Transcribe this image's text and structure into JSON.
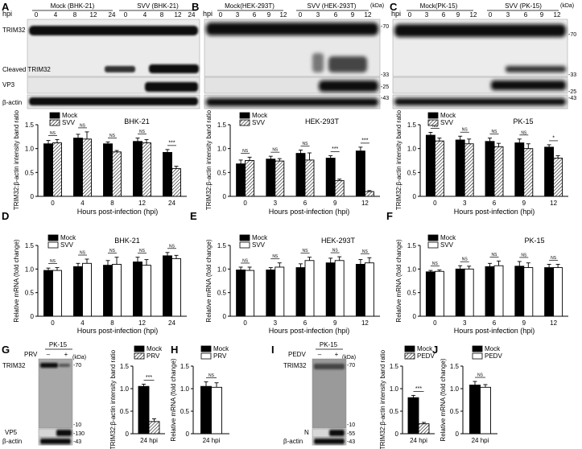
{
  "panels": {
    "A": {
      "label": "A",
      "blot": {
        "hpi_label": "hpi",
        "hpi": [
          "0",
          "4",
          "8",
          "12",
          "24",
          "0",
          "4",
          "8",
          "12",
          "24"
        ],
        "mock_label": "Mock (BHK-21)",
        "svv_label": "SVV (BHK-21)",
        "rows": [
          "TRIM32",
          "Cleaved TRIM32",
          "VP3",
          "β-actin"
        ]
      }
    },
    "B": {
      "label": "B",
      "blot": {
        "hpi_label": "hpi",
        "hpi": [
          "0",
          "3",
          "6",
          "9",
          "12",
          "0",
          "3",
          "6",
          "9",
          "12"
        ],
        "mock_label": "Mock(HEK-293T)",
        "svv_label": "SVV (HEK-293T)",
        "kda": "(kDa)",
        "markers": [
          "-70",
          "-33",
          "-25",
          "-43"
        ]
      }
    },
    "C": {
      "label": "C",
      "blot": {
        "hpi_label": "hpi",
        "hpi": [
          "0",
          "3",
          "6",
          "9",
          "12",
          "0",
          "3",
          "6",
          "9",
          "12"
        ],
        "mock_label": "Mock(PK-15)",
        "svv_label": "SVV (PK-15)",
        "kda": "(kDa)",
        "markers": [
          "-70",
          "-33",
          "-25",
          "-43"
        ]
      }
    },
    "D": {
      "label": "D"
    },
    "E": {
      "label": "E"
    },
    "F": {
      "label": "F"
    },
    "G": {
      "label": "G",
      "blot": {
        "cell": "PK-15",
        "virus": "PRV",
        "lanes": [
          "–",
          "+"
        ],
        "kda": "(kDa)",
        "rows": [
          "TRIM32",
          "VP5",
          "β-actin"
        ],
        "markers": [
          "-70",
          "-10",
          "-130",
          "-43"
        ]
      }
    },
    "H": {
      "label": "H"
    },
    "I": {
      "label": "I",
      "blot": {
        "cell": "PK-15",
        "virus": "PEDV",
        "lanes": [
          "–",
          "+"
        ],
        "kda": "(kDa)",
        "rows": [
          "TRIM32",
          "N",
          "β-actin"
        ],
        "markers": [
          "-70",
          "-10",
          "-55",
          "-43"
        ]
      }
    },
    "J": {
      "label": "J"
    }
  },
  "chart_data": [
    {
      "id": "A-quant",
      "type": "bar",
      "title": "BHK-21",
      "xlabel": "Hours post-infection (hpi)",
      "ylabel": "TRIM32:β-actin intensity band ratio",
      "categories": [
        "0",
        "4",
        "8",
        "12",
        "24"
      ],
      "ylim": [
        0,
        1.5
      ],
      "yticks": [
        0,
        0.5,
        1.0,
        1.5
      ],
      "legend": "top-left",
      "series": [
        {
          "name": "Mock",
          "values": [
            1.1,
            1.22,
            1.1,
            1.15,
            0.92
          ],
          "errors": [
            0.07,
            0.08,
            0.04,
            0.07,
            0.06
          ]
        },
        {
          "name": "SVV",
          "values": [
            1.12,
            1.2,
            0.93,
            1.12,
            0.58
          ],
          "errors": [
            0.07,
            0.15,
            0.03,
            0.07,
            0.05
          ]
        }
      ],
      "significance": [
        "NS",
        "NS",
        "NS",
        "NS",
        "***"
      ]
    },
    {
      "id": "B-quant",
      "type": "bar",
      "title": "HEK-293T",
      "xlabel": "Hours post-infection (hpi)",
      "ylabel": "TRIM32:β-actin intensity band ratio",
      "categories": [
        "0",
        "3",
        "6",
        "9",
        "12"
      ],
      "ylim": [
        0,
        1.5
      ],
      "yticks": [
        0,
        0.5,
        1.0,
        1.5
      ],
      "legend": "top-left",
      "series": [
        {
          "name": "Mock",
          "values": [
            0.68,
            0.78,
            0.9,
            0.8,
            0.95
          ],
          "errors": [
            0.08,
            0.06,
            0.07,
            0.05,
            0.08
          ]
        },
        {
          "name": "SVV",
          "values": [
            0.75,
            0.74,
            0.76,
            0.33,
            0.1
          ],
          "errors": [
            0.07,
            0.05,
            0.15,
            0.03,
            0.02
          ]
        }
      ],
      "significance": [
        "NS",
        "NS",
        "NS",
        "***",
        "***"
      ]
    },
    {
      "id": "C-quant",
      "type": "bar",
      "title": "PK-15",
      "xlabel": "Hours post-infection (hpi)",
      "ylabel": "TRIM32:β-actin intensity band ratio",
      "categories": [
        "0",
        "3",
        "6",
        "9",
        "12"
      ],
      "ylim": [
        0,
        1.5
      ],
      "yticks": [
        0,
        0.5,
        1.0,
        1.5
      ],
      "legend": "top-left",
      "series": [
        {
          "name": "Mock",
          "values": [
            1.28,
            1.18,
            1.15,
            1.12,
            1.03
          ],
          "errors": [
            0.06,
            0.08,
            0.07,
            0.08,
            0.05
          ]
        },
        {
          "name": "SVV",
          "values": [
            1.16,
            1.1,
            1.04,
            1.0,
            0.8
          ],
          "errors": [
            0.06,
            0.1,
            0.07,
            0.1,
            0.05
          ]
        }
      ],
      "significance": [
        "NS",
        "NS",
        "NS",
        "NS",
        "*"
      ]
    },
    {
      "id": "D-mrna",
      "type": "bar",
      "title": "BHK-21",
      "xlabel": "Hours post-infection (hpi)",
      "ylabel": "Relative mRNA (fold change)",
      "categories": [
        "0",
        "4",
        "8",
        "12",
        "24"
      ],
      "ylim": [
        0,
        1.5
      ],
      "yticks": [
        0,
        0.5,
        1.0,
        1.5
      ],
      "legend": "top-left",
      "series": [
        {
          "name": "Mock",
          "values": [
            0.97,
            1.05,
            1.08,
            1.15,
            1.28
          ],
          "errors": [
            0.05,
            0.07,
            0.1,
            0.1,
            0.07
          ]
        },
        {
          "name": "SVV",
          "values": [
            0.97,
            1.12,
            1.1,
            1.08,
            1.22
          ],
          "errors": [
            0.06,
            0.09,
            0.15,
            0.12,
            0.07
          ]
        }
      ],
      "significance": [
        "NS",
        "NS",
        "NS",
        "NS",
        "NS"
      ]
    },
    {
      "id": "E-mrna",
      "type": "bar",
      "title": "HEK-293T",
      "xlabel": "Hours post-infection (hpi)",
      "ylabel": "Relative mRNA (fold change)",
      "categories": [
        "0",
        "3",
        "6",
        "9",
        "12"
      ],
      "ylim": [
        0,
        1.5
      ],
      "yticks": [
        0,
        0.5,
        1.0,
        1.5
      ],
      "legend": "top-left",
      "series": [
        {
          "name": "Mock",
          "values": [
            0.98,
            0.98,
            1.03,
            1.13,
            1.1
          ],
          "errors": [
            0.06,
            0.05,
            0.08,
            0.1,
            0.1
          ]
        },
        {
          "name": "SVV",
          "values": [
            0.97,
            1.04,
            1.18,
            1.18,
            1.13
          ],
          "errors": [
            0.07,
            0.09,
            0.07,
            0.08,
            0.11
          ]
        }
      ],
      "significance": [
        "NS",
        "NS",
        "NS",
        "NS",
        "NS"
      ]
    },
    {
      "id": "F-mrna",
      "type": "bar",
      "title": "PK-15",
      "xlabel": "Hours post-infection (hpi)",
      "ylabel": "Relative mRNA (fold change)",
      "categories": [
        "0",
        "3",
        "6",
        "9",
        "12"
      ],
      "ylim": [
        0,
        1.5
      ],
      "yticks": [
        0,
        0.5,
        1.0,
        1.5
      ],
      "legend": "top-left",
      "series": [
        {
          "name": "Mock",
          "values": [
            0.94,
            1.0,
            1.05,
            1.06,
            1.03
          ],
          "errors": [
            0.03,
            0.07,
            0.07,
            0.1,
            0.07
          ]
        },
        {
          "name": "SVV",
          "values": [
            0.95,
            1.0,
            1.07,
            1.03,
            1.03
          ],
          "errors": [
            0.03,
            0.06,
            0.1,
            0.1,
            0.07
          ]
        }
      ],
      "significance": [
        "NS",
        "NS",
        "NS",
        "NS",
        "NS"
      ]
    },
    {
      "id": "G-quant",
      "type": "bar",
      "title": "",
      "xlabel": "",
      "ylabel": "TRIM32:β-actin intensity band ratio",
      "categories": [
        "24 hpi"
      ],
      "ylim": [
        0,
        1.5
      ],
      "yticks": [
        0,
        0.5,
        1.0,
        1.5
      ],
      "legend": "top-right",
      "series": [
        {
          "name": "Mock",
          "values": [
            1.05
          ],
          "errors": [
            0.05
          ]
        },
        {
          "name": "PRV",
          "values": [
            0.27
          ],
          "errors": [
            0.06
          ]
        }
      ],
      "significance": [
        "***"
      ]
    },
    {
      "id": "H-mrna",
      "type": "bar",
      "title": "",
      "xlabel": "",
      "ylabel": "Relative mRNA (fold change)",
      "categories": [
        "24 hpi"
      ],
      "ylim": [
        0,
        1.5
      ],
      "yticks": [
        0,
        0.5,
        1.0,
        1.5
      ],
      "legend": "top-right",
      "series": [
        {
          "name": "Mock",
          "values": [
            1.05
          ],
          "errors": [
            0.1
          ]
        },
        {
          "name": "PRV",
          "values": [
            1.03
          ],
          "errors": [
            0.1
          ]
        }
      ],
      "significance": [
        "NS"
      ]
    },
    {
      "id": "I-quant",
      "type": "bar",
      "title": "",
      "xlabel": "",
      "ylabel": "TRIM32:β-actin intensity band ratio",
      "categories": [
        "24 hpi"
      ],
      "ylim": [
        0,
        1.5
      ],
      "yticks": [
        0,
        0.5,
        1.0,
        1.5
      ],
      "legend": "top-right",
      "series": [
        {
          "name": "Mock",
          "values": [
            0.8
          ],
          "errors": [
            0.05
          ]
        },
        {
          "name": "PEDV",
          "values": [
            0.22
          ],
          "errors": [
            0.03
          ]
        }
      ],
      "significance": [
        "***"
      ]
    },
    {
      "id": "J-mrna",
      "type": "bar",
      "title": "",
      "xlabel": "",
      "ylabel": "Relative mRNA (fold change)",
      "categories": [
        "24 hpi"
      ],
      "ylim": [
        0,
        1.5
      ],
      "yticks": [
        0,
        0.5,
        1.0,
        1.5
      ],
      "legend": "top-right",
      "series": [
        {
          "name": "Mock",
          "values": [
            1.08
          ],
          "errors": [
            0.08
          ]
        },
        {
          "name": "PEDV",
          "values": [
            1.03
          ],
          "errors": [
            0.06
          ]
        }
      ],
      "significance": [
        "NS"
      ]
    }
  ]
}
